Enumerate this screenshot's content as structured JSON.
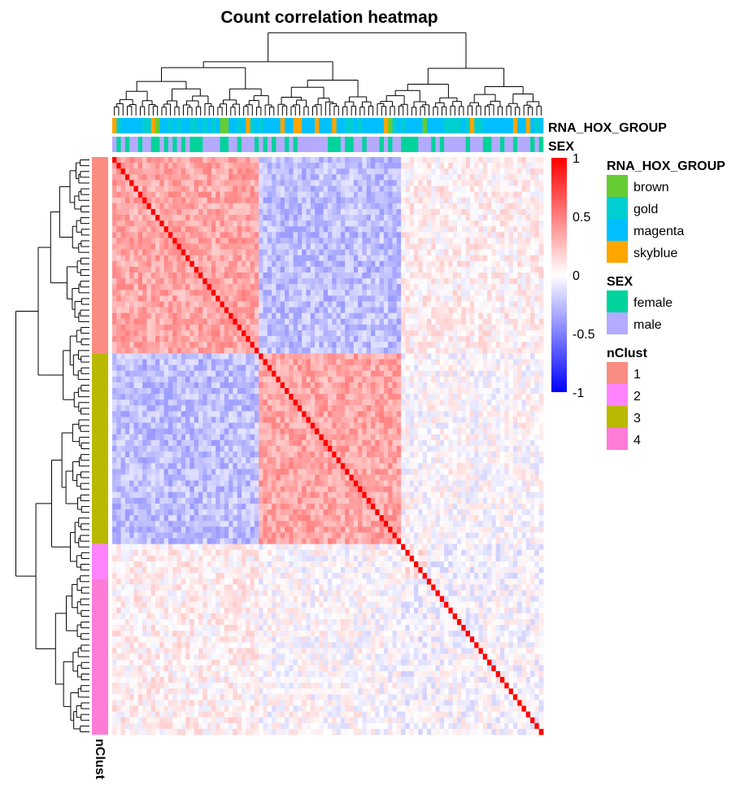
{
  "chart_data": {
    "type": "heatmap",
    "title": "Count correlation heatmap",
    "n_samples": 100,
    "value_range": [
      -1,
      1
    ],
    "colorbar": {
      "ticks": [
        1,
        0.5,
        0,
        -0.5,
        -1
      ],
      "tick_labels": [
        "1",
        "0.5",
        "0",
        "-0.5",
        "-1"
      ],
      "colors": {
        "low": "#0000ff",
        "mid": "#ffffff",
        "high": "#ff0000"
      }
    },
    "column_annotations": [
      {
        "name": "RNA_HOX_GROUP"
      },
      {
        "name": "SEX"
      }
    ],
    "row_annotation": {
      "name": "nClust"
    },
    "clusters": [
      {
        "id": "1",
        "size": 34
      },
      {
        "id": "3",
        "size": 33
      },
      {
        "id": "2",
        "size": 6
      },
      {
        "id": "4",
        "size": 27
      }
    ],
    "block_correlation": [
      [
        0.35,
        -0.25,
        0.05,
        0.05
      ],
      [
        -0.25,
        0.35,
        0.0,
        0.0
      ],
      [
        0.05,
        0.0,
        0.1,
        -0.05
      ],
      [
        0.05,
        0.0,
        -0.05,
        -0.02
      ]
    ],
    "diagonal": 1,
    "legends": [
      {
        "title": "RNA_HOX_GROUP",
        "items": [
          {
            "label": "brown",
            "color": "#66cc33"
          },
          {
            "label": "gold",
            "color": "#00ced1"
          },
          {
            "label": "magenta",
            "color": "#00bfff"
          },
          {
            "label": "skyblue",
            "color": "#ffa500"
          }
        ]
      },
      {
        "title": "SEX",
        "items": [
          {
            "label": "female",
            "color": "#00d39b"
          },
          {
            "label": "male",
            "color": "#b4aaff"
          }
        ]
      },
      {
        "title": "nClust",
        "items": [
          {
            "label": "1",
            "color": "#fa8c82"
          },
          {
            "label": "2",
            "color": "#ff82ff"
          },
          {
            "label": "3",
            "color": "#b9b900"
          },
          {
            "label": "4",
            "color": "#ff7bd8"
          }
        ]
      }
    ]
  }
}
